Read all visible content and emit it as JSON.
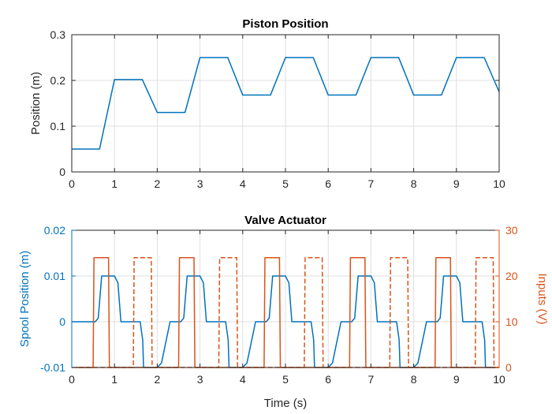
{
  "colors": {
    "blue": "#0072BD",
    "orange": "#D95319",
    "axis": "#262626",
    "grid": "#DFDFDF"
  },
  "chart_data": [
    {
      "type": "line",
      "title": "Piston Position",
      "xlabel": "",
      "ylabel": "Position (m)",
      "xlim": [
        0,
        10
      ],
      "ylim": [
        0,
        0.3
      ],
      "xticks": [
        0,
        1,
        2,
        3,
        4,
        5,
        6,
        7,
        8,
        9,
        10
      ],
      "yticks": [
        0,
        0.1,
        0.2,
        0.3
      ],
      "xtick_labels": [
        "0",
        "1",
        "2",
        "3",
        "4",
        "5",
        "6",
        "7",
        "8",
        "9",
        "10"
      ],
      "ytick_labels": [
        "0",
        "0.1",
        "0.2",
        "0.3"
      ],
      "grid": true,
      "series": [
        {
          "color": "#0072BD",
          "x": [
            0,
            0.65,
            1.0,
            1.65,
            2.0,
            2.65,
            3.0,
            3.65,
            4.0,
            4.65,
            5.0,
            5.65,
            6.0,
            6.65,
            7.0,
            7.65,
            8.0,
            8.65,
            9.0,
            9.65,
            10.0
          ],
          "y": [
            0.05,
            0.05,
            0.202,
            0.202,
            0.13,
            0.13,
            0.25,
            0.25,
            0.168,
            0.168,
            0.25,
            0.25,
            0.168,
            0.168,
            0.25,
            0.25,
            0.168,
            0.168,
            0.25,
            0.25,
            0.175
          ]
        }
      ]
    },
    {
      "type": "line",
      "title": "Valve Actuator",
      "xlabel": "Time (s)",
      "ylabel_left": "Spool Position (m)",
      "ylabel_right": "Inputs (V)",
      "xlim": [
        0,
        10
      ],
      "ylim_left": [
        -0.01,
        0.02
      ],
      "ylim_right": [
        0,
        30
      ],
      "xticks": [
        0,
        1,
        2,
        3,
        4,
        5,
        6,
        7,
        8,
        9,
        10
      ],
      "xtick_labels": [
        "0",
        "1",
        "2",
        "3",
        "4",
        "5",
        "6",
        "7",
        "8",
        "9",
        "10"
      ],
      "yticks_left": [
        -0.01,
        0,
        0.01,
        0.02
      ],
      "ytick_labels_left": [
        "-0.01",
        "0",
        "0.01",
        "0.02"
      ],
      "yticks_right": [
        0,
        10,
        20,
        30
      ],
      "ytick_labels_right": [
        "0",
        "10",
        "20",
        "30"
      ],
      "grid": true,
      "series": [
        {
          "axis": "left",
          "style": "solid",
          "color": "#0072BD",
          "x": [
            0,
            0.55,
            0.62,
            0.7,
            1.0,
            1.08,
            1.15,
            1.5,
            1.6,
            1.66,
            1.68,
            1.75,
            1.82,
            2.0,
            2.1,
            2.3,
            2.55,
            2.62,
            2.7,
            3.0,
            3.08,
            3.15,
            3.5,
            3.6,
            3.66,
            3.68,
            3.75,
            3.82,
            4.0,
            4.1,
            4.3,
            4.55,
            4.62,
            4.7,
            5.0,
            5.08,
            5.15,
            5.5,
            5.6,
            5.66,
            5.68,
            5.75,
            5.82,
            6.0,
            6.1,
            6.3,
            6.55,
            6.62,
            6.7,
            7.0,
            7.08,
            7.15,
            7.5,
            7.6,
            7.66,
            7.68,
            7.75,
            7.82,
            8.0,
            8.1,
            8.3,
            8.55,
            8.62,
            8.7,
            9.0,
            9.08,
            9.15,
            9.5,
            9.6,
            9.66,
            9.68,
            9.75,
            9.82,
            10.0
          ],
          "y": [
            0,
            0,
            0.0008,
            0.01,
            0.01,
            0.0085,
            0,
            0,
            0,
            -0.004,
            -0.01,
            -0.01,
            -0.01,
            -0.01,
            -0.009,
            0,
            0,
            0.0008,
            0.01,
            0.01,
            0.0085,
            0,
            0,
            0,
            -0.004,
            -0.01,
            -0.01,
            -0.01,
            -0.01,
            -0.009,
            0,
            0,
            0.0008,
            0.01,
            0.01,
            0.0085,
            0,
            0,
            0,
            -0.004,
            -0.01,
            -0.01,
            -0.01,
            -0.01,
            -0.009,
            0,
            0,
            0.0008,
            0.01,
            0.01,
            0.0085,
            0,
            0,
            0,
            -0.004,
            -0.01,
            -0.01,
            -0.01,
            -0.01,
            -0.009,
            0,
            0,
            0.0008,
            0.01,
            0.01,
            0.0085,
            0,
            0,
            0,
            -0.004,
            -0.01,
            -0.01,
            -0.01,
            -0.01
          ]
        },
        {
          "axis": "right",
          "style": "solid",
          "color": "#D95319",
          "x": [
            0,
            0.5,
            0.52,
            0.86,
            0.88,
            2.5,
            2.52,
            2.86,
            2.88,
            4.5,
            4.52,
            4.86,
            4.88,
            6.5,
            6.52,
            6.86,
            6.88,
            8.5,
            8.52,
            8.86,
            8.88,
            10
          ],
          "y": [
            0,
            0,
            24,
            24,
            0,
            0,
            24,
            24,
            0,
            0,
            24,
            24,
            0,
            0,
            24,
            24,
            0,
            0,
            24,
            24,
            0,
            0
          ]
        },
        {
          "axis": "right",
          "style": "dashed",
          "color": "#D95319",
          "x": [
            0,
            1.44,
            1.46,
            1.86,
            1.88,
            3.44,
            3.46,
            3.86,
            3.88,
            5.44,
            5.46,
            5.86,
            5.88,
            7.44,
            7.46,
            7.86,
            7.88,
            9.44,
            9.46,
            9.86,
            9.88,
            10
          ],
          "y": [
            0,
            0,
            24,
            24,
            0,
            0,
            24,
            24,
            0,
            0,
            24,
            24,
            0,
            0,
            24,
            24,
            0,
            0,
            24,
            24,
            0,
            0
          ]
        }
      ]
    }
  ]
}
